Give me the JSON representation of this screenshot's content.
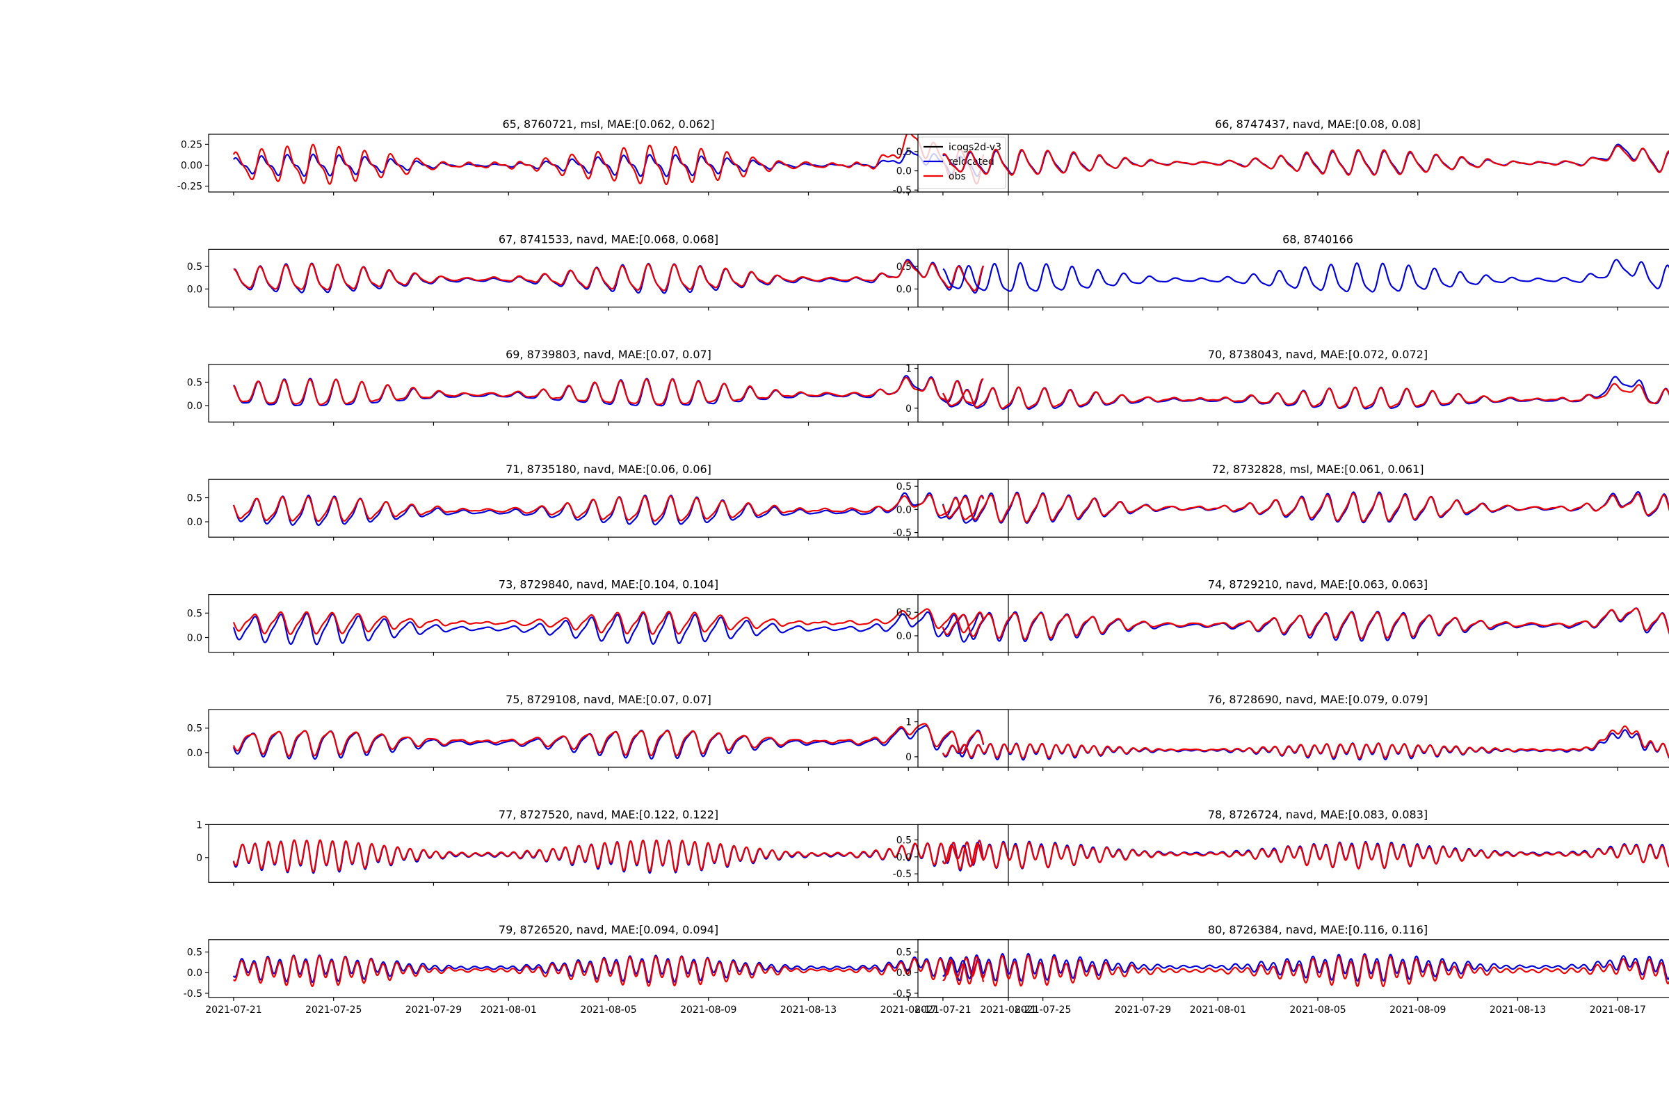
{
  "figure": {
    "title": ""
  },
  "legend": {
    "entries": [
      {
        "label": "icogs2d-v3",
        "color": "#000000"
      },
      {
        "label": "relocated",
        "color": "#0000dd"
      },
      {
        "label": "obs",
        "color": "#ee0000"
      }
    ]
  },
  "colors": {
    "model": "#000000",
    "relocated": "#0000dd",
    "obs": "#ee0000",
    "frame": "#000000"
  },
  "x_axis": {
    "range_days": [
      -1.0,
      31.0
    ],
    "ticks": [
      {
        "day": 0,
        "label": "2021-07-21"
      },
      {
        "day": 4,
        "label": "2021-07-25"
      },
      {
        "day": 8,
        "label": "2021-07-29"
      },
      {
        "day": 11,
        "label": "2021-08-01"
      },
      {
        "day": 15,
        "label": "2021-08-05"
      },
      {
        "day": 19,
        "label": "2021-08-09"
      },
      {
        "day": 23,
        "label": "2021-08-13"
      },
      {
        "day": 27,
        "label": "2021-08-17"
      },
      {
        "day": 31,
        "label": "2021-08-21"
      }
    ],
    "data_span_days": [
      0,
      30.0
    ]
  },
  "chart_data": [
    {
      "type": "line",
      "title": "65, 8760721, msl, MAE:[0.062, 0.062]",
      "station": "8760721",
      "index": 65,
      "datum": "msl",
      "mae": [
        0.062,
        0.062
      ],
      "ylim": [
        -0.32,
        0.37
      ],
      "yticks": [
        {
          "v": 0.25,
          "label": "0.25"
        },
        {
          "v": 0.0,
          "label": "0.00"
        },
        {
          "v": -0.25,
          "label": "-0.25"
        }
      ],
      "has_legend": true,
      "has_obs": true,
      "has_xticklabels": false,
      "series": [
        {
          "name": "relocated",
          "amp": 0.15,
          "mean": 0.0,
          "diurnal": 0.7,
          "peak_boost": 0.12
        },
        {
          "name": "obs",
          "amp": 0.26,
          "mean": 0.0,
          "diurnal": 0.75,
          "peak_boost": 0.3
        }
      ]
    },
    {
      "type": "line",
      "title": "66, 8747437, navd, MAE:[0.08, 0.08]",
      "station": "8747437",
      "index": 66,
      "datum": "navd",
      "mae": [
        0.08,
        0.08
      ],
      "ylim": [
        -0.55,
        0.95
      ],
      "yticks": [
        {
          "v": 0.5,
          "label": "0.5"
        },
        {
          "v": 0.0,
          "label": "0.0"
        },
        {
          "v": -0.5,
          "label": "-0.5"
        }
      ],
      "has_legend": false,
      "has_obs": true,
      "has_xticklabels": false,
      "series": [
        {
          "name": "relocated",
          "amp": 0.35,
          "mean": 0.2,
          "diurnal": 0.8,
          "peak_boost": 0.35
        },
        {
          "name": "obs",
          "amp": 0.38,
          "mean": 0.2,
          "diurnal": 0.8,
          "peak_boost": 0.3
        }
      ]
    },
    {
      "type": "line",
      "title": "67, 8741533, navd, MAE:[0.068, 0.068]",
      "station": "8741533",
      "index": 67,
      "datum": "navd",
      "mae": [
        0.068,
        0.068
      ],
      "ylim": [
        -0.4,
        0.88
      ],
      "yticks": [
        {
          "v": 0.5,
          "label": "0.5"
        },
        {
          "v": 0.0,
          "label": "0.0"
        }
      ],
      "has_legend": false,
      "has_obs": true,
      "has_xticklabels": false,
      "series": [
        {
          "name": "relocated",
          "amp": 0.38,
          "mean": 0.2,
          "diurnal": 0.8,
          "peak_boost": 0.3
        },
        {
          "name": "obs",
          "amp": 0.34,
          "mean": 0.22,
          "diurnal": 0.8,
          "peak_boost": 0.25
        }
      ]
    },
    {
      "type": "line",
      "title": "68, 8740166",
      "station": "8740166",
      "index": 68,
      "datum": "",
      "mae": [],
      "ylim": [
        -0.4,
        0.88
      ],
      "yticks": [
        {
          "v": 0.5,
          "label": "0.5"
        },
        {
          "v": 0.0,
          "label": "0.0"
        }
      ],
      "has_legend": false,
      "has_obs": false,
      "has_xticklabels": false,
      "series": [
        {
          "name": "relocated",
          "amp": 0.38,
          "mean": 0.2,
          "diurnal": 0.8,
          "peak_boost": 0.3
        }
      ]
    },
    {
      "type": "line",
      "title": "69, 8739803, navd, MAE:[0.07, 0.07]",
      "station": "8739803",
      "index": 69,
      "datum": "navd",
      "mae": [
        0.07,
        0.07
      ],
      "ylim": [
        -0.35,
        0.88
      ],
      "yticks": [
        {
          "v": 0.5,
          "label": "0.5"
        },
        {
          "v": 0.0,
          "label": "0.0"
        }
      ],
      "has_legend": false,
      "has_obs": true,
      "has_xticklabels": false,
      "series": [
        {
          "name": "relocated",
          "amp": 0.36,
          "mean": 0.22,
          "diurnal": 0.8,
          "peak_boost": 0.28
        },
        {
          "name": "obs",
          "amp": 0.33,
          "mean": 0.24,
          "diurnal": 0.8,
          "peak_boost": 0.22
        }
      ]
    },
    {
      "type": "line",
      "title": "70, 8738043, navd, MAE:[0.072, 0.072]",
      "station": "8738043",
      "index": 70,
      "datum": "navd",
      "mae": [
        0.072,
        0.072
      ],
      "ylim": [
        -0.35,
        1.1
      ],
      "yticks": [
        {
          "v": 1.0,
          "label": "1"
        },
        {
          "v": 0.0,
          "label": "0"
        }
      ],
      "has_legend": false,
      "has_obs": true,
      "has_xticklabels": false,
      "series": [
        {
          "name": "relocated",
          "amp": 0.33,
          "mean": 0.2,
          "diurnal": 0.8,
          "peak_boost": 0.5
        },
        {
          "name": "obs",
          "amp": 0.3,
          "mean": 0.22,
          "diurnal": 0.8,
          "peak_boost": 0.3
        }
      ]
    },
    {
      "type": "line",
      "title": "71, 8735180, navd, MAE:[0.06, 0.06]",
      "station": "8735180",
      "index": 71,
      "datum": "navd",
      "mae": [
        0.06,
        0.06
      ],
      "ylim": [
        -0.32,
        0.88
      ],
      "yticks": [
        {
          "v": 0.5,
          "label": "0.5"
        },
        {
          "v": 0.0,
          "label": "0.0"
        }
      ],
      "has_legend": false,
      "has_obs": true,
      "has_xticklabels": false,
      "series": [
        {
          "name": "relocated",
          "amp": 0.36,
          "mean": 0.2,
          "diurnal": 0.8,
          "peak_boost": 0.28
        },
        {
          "name": "obs",
          "amp": 0.3,
          "mean": 0.24,
          "diurnal": 0.8,
          "peak_boost": 0.2
        }
      ]
    },
    {
      "type": "line",
      "title": "72, 8732828, msl, MAE:[0.061, 0.061]",
      "station": "8732828",
      "index": 72,
      "datum": "msl",
      "mae": [
        0.061,
        0.061
      ],
      "ylim": [
        -0.6,
        0.65
      ],
      "yticks": [
        {
          "v": 0.5,
          "label": "0.5"
        },
        {
          "v": 0.0,
          "label": "0.0"
        },
        {
          "v": -0.5,
          "label": "-0.5"
        }
      ],
      "has_legend": false,
      "has_obs": true,
      "has_xticklabels": false,
      "series": [
        {
          "name": "relocated",
          "amp": 0.38,
          "mean": 0.02,
          "diurnal": 0.8,
          "peak_boost": 0.2
        },
        {
          "name": "obs",
          "amp": 0.34,
          "mean": 0.03,
          "diurnal": 0.8,
          "peak_boost": 0.15
        }
      ]
    },
    {
      "type": "line",
      "title": "73, 8729840, navd, MAE:[0.104, 0.104]",
      "station": "8729840",
      "index": 73,
      "datum": "navd",
      "mae": [
        0.104,
        0.104
      ],
      "ylim": [
        -0.3,
        0.88
      ],
      "yticks": [
        {
          "v": 0.5,
          "label": "0.5"
        },
        {
          "v": 0.0,
          "label": "0.0"
        }
      ],
      "has_legend": false,
      "has_obs": true,
      "has_xticklabels": false,
      "series": [
        {
          "name": "relocated",
          "amp": 0.36,
          "mean": 0.18,
          "diurnal": 0.8,
          "peak_boost": 0.2
        },
        {
          "name": "obs",
          "amp": 0.26,
          "mean": 0.3,
          "diurnal": 0.8,
          "peak_boost": 0.2
        }
      ]
    },
    {
      "type": "line",
      "title": "74, 8729210, navd, MAE:[0.063, 0.063]",
      "station": "8729210",
      "index": 74,
      "datum": "navd",
      "mae": [
        0.063,
        0.063
      ],
      "ylim": [
        -0.35,
        0.88
      ],
      "yticks": [
        {
          "v": 0.5,
          "label": "0.5"
        },
        {
          "v": 0.0,
          "label": "0.0"
        }
      ],
      "has_legend": false,
      "has_obs": true,
      "has_xticklabels": false,
      "series": [
        {
          "name": "relocated",
          "amp": 0.36,
          "mean": 0.22,
          "diurnal": 0.8,
          "peak_boost": 0.25
        },
        {
          "name": "obs",
          "amp": 0.32,
          "mean": 0.24,
          "diurnal": 0.8,
          "peak_boost": 0.25
        }
      ]
    },
    {
      "type": "line",
      "title": "75, 8729108, navd, MAE:[0.07, 0.07]",
      "station": "8729108",
      "index": 75,
      "datum": "navd",
      "mae": [
        0.07,
        0.07
      ],
      "ylim": [
        -0.3,
        0.88
      ],
      "yticks": [
        {
          "v": 0.5,
          "label": "0.5"
        },
        {
          "v": 0.0,
          "label": "0.0"
        }
      ],
      "has_legend": false,
      "has_obs": true,
      "has_xticklabels": false,
      "series": [
        {
          "name": "relocated",
          "amp": 0.34,
          "mean": 0.2,
          "diurnal": 0.8,
          "peak_boost": 0.25
        },
        {
          "name": "obs",
          "amp": 0.3,
          "mean": 0.23,
          "diurnal": 0.8,
          "peak_boost": 0.28
        }
      ]
    },
    {
      "type": "line",
      "title": "76, 8728690, navd, MAE:[0.079, 0.079]",
      "station": "8728690",
      "index": 76,
      "datum": "navd",
      "mae": [
        0.079,
        0.079
      ],
      "ylim": [
        -0.3,
        1.35
      ],
      "yticks": [
        {
          "v": 1.0,
          "label": "1"
        },
        {
          "v": 0.0,
          "label": "0"
        }
      ],
      "has_legend": false,
      "has_obs": true,
      "has_xticklabels": false,
      "series": [
        {
          "name": "relocated",
          "amp": 0.27,
          "mean": 0.18,
          "diurnal": 0.3,
          "peak_boost": 0.5
        },
        {
          "name": "obs",
          "amp": 0.24,
          "mean": 0.2,
          "diurnal": 0.3,
          "peak_boost": 0.6
        }
      ]
    },
    {
      "type": "line",
      "title": "77, 8727520, navd, MAE:[0.122, 0.122]",
      "station": "8727520",
      "index": 77,
      "datum": "navd",
      "mae": [
        0.122,
        0.122
      ],
      "ylim": [
        -0.75,
        1.0
      ],
      "yticks": [
        {
          "v": 1.0,
          "label": "1"
        },
        {
          "v": 0.0,
          "label": "0"
        }
      ],
      "has_legend": false,
      "has_obs": true,
      "has_xticklabels": false,
      "series": [
        {
          "name": "relocated",
          "amp": 0.55,
          "mean": 0.08,
          "diurnal": 0.2,
          "peak_boost": 0.1
        },
        {
          "name": "obs",
          "amp": 0.52,
          "mean": 0.1,
          "diurnal": 0.2,
          "peak_boost": 0.1
        }
      ]
    },
    {
      "type": "line",
      "title": "78, 8726724, navd, MAE:[0.083, 0.083]",
      "station": "8726724",
      "index": 78,
      "datum": "navd",
      "mae": [
        0.083,
        0.083
      ],
      "ylim": [
        -0.75,
        0.95
      ],
      "yticks": [
        {
          "v": 0.5,
          "label": "0.5"
        },
        {
          "v": 0.0,
          "label": "0.0"
        },
        {
          "v": -0.5,
          "label": "-0.5"
        }
      ],
      "has_legend": false,
      "has_obs": true,
      "has_xticklabels": false,
      "series": [
        {
          "name": "relocated",
          "amp": 0.45,
          "mean": 0.1,
          "diurnal": 0.3,
          "peak_boost": 0.1
        },
        {
          "name": "obs",
          "amp": 0.42,
          "mean": 0.08,
          "diurnal": 0.3,
          "peak_boost": 0.1
        }
      ]
    },
    {
      "type": "line",
      "title": "79, 8726520, navd, MAE:[0.094, 0.094]",
      "station": "8726520",
      "index": 79,
      "datum": "navd",
      "mae": [
        0.094,
        0.094
      ],
      "ylim": [
        -0.6,
        0.8
      ],
      "yticks": [
        {
          "v": 0.5,
          "label": "0.5"
        },
        {
          "v": 0.0,
          "label": "0.0"
        },
        {
          "v": -0.5,
          "label": "-0.5"
        }
      ],
      "has_legend": false,
      "has_obs": true,
      "has_xticklabels": true,
      "series": [
        {
          "name": "relocated",
          "amp": 0.36,
          "mean": 0.12,
          "diurnal": 0.3,
          "peak_boost": 0.1
        },
        {
          "name": "obs",
          "amp": 0.4,
          "mean": 0.06,
          "diurnal": 0.3,
          "peak_boost": 0.1
        }
      ]
    },
    {
      "type": "line",
      "title": "80, 8726384, navd, MAE:[0.116, 0.116]",
      "station": "8726384",
      "index": 80,
      "datum": "navd",
      "mae": [
        0.116,
        0.116
      ],
      "ylim": [
        -0.6,
        0.8
      ],
      "yticks": [
        {
          "v": 0.5,
          "label": "0.5"
        },
        {
          "v": 0.0,
          "label": "0.0"
        },
        {
          "v": -0.5,
          "label": "-0.5"
        }
      ],
      "has_legend": false,
      "has_obs": true,
      "has_xticklabels": true,
      "series": [
        {
          "name": "relocated",
          "amp": 0.36,
          "mean": 0.14,
          "diurnal": 0.3,
          "peak_boost": 0.1
        },
        {
          "name": "obs",
          "amp": 0.4,
          "mean": 0.05,
          "diurnal": 0.3,
          "peak_boost": 0.1
        }
      ]
    }
  ]
}
